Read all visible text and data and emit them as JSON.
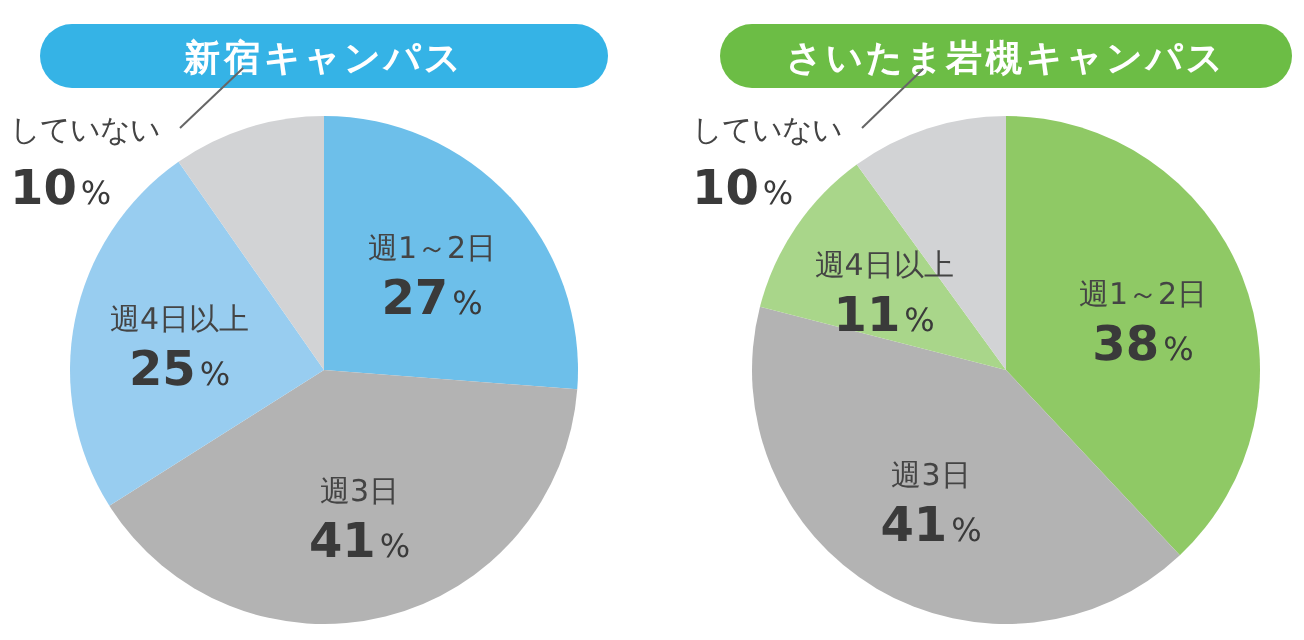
{
  "chart_data": [
    {
      "type": "pie",
      "title": "新宿キャンパス",
      "categories": [
        "週1～2日",
        "週3日",
        "週4日以上",
        "していない"
      ],
      "values": [
        27,
        41,
        25,
        10
      ],
      "value_labels": [
        "27%",
        "41%",
        "25%",
        "10%"
      ],
      "colors": [
        "#6dbfea",
        "#b3b3b3",
        "#98cdf0",
        "#d2d3d5"
      ]
    },
    {
      "type": "pie",
      "title": "さいたま岩槻キャンパス",
      "categories": [
        "週1～2日",
        "週3日",
        "週4日以上",
        "していない"
      ],
      "values": [
        38,
        41,
        11,
        10
      ],
      "value_labels": [
        "38%",
        "41%",
        "11%",
        "10%"
      ],
      "colors": [
        "#8fc965",
        "#b3b3b3",
        "#a9d68a",
        "#d2d3d5"
      ]
    }
  ]
}
